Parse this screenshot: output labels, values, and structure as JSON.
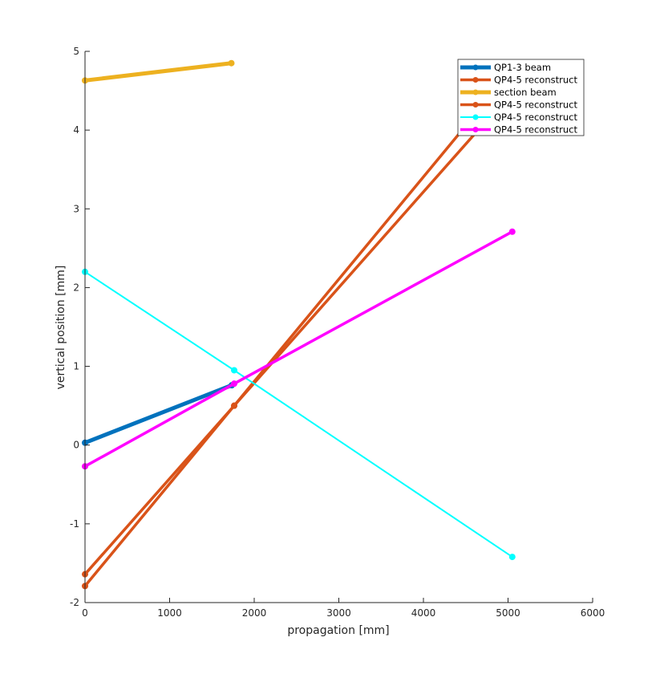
{
  "chart_data": {
    "type": "line",
    "title": "",
    "xlabel": "propagation [mm]",
    "ylabel": "vertical position [mm]",
    "xlim": [
      0,
      6000
    ],
    "ylim": [
      -2,
      5
    ],
    "xticks": [
      0,
      1000,
      2000,
      3000,
      4000,
      5000,
      6000
    ],
    "yticks": [
      -2,
      -1,
      0,
      1,
      2,
      3,
      4,
      5
    ],
    "grid": false,
    "legend_position": "top-right",
    "series": [
      {
        "name": "QP1-3 beam",
        "color": "#0072BD",
        "width": 5,
        "x": [
          0,
          1735
        ],
        "y": [
          0.03,
          0.76
        ]
      },
      {
        "name": "QP4-5 reconstruct",
        "color": "#D95319",
        "width": 3.5,
        "x": [
          0,
          1763,
          5050
        ],
        "y": [
          -1.64,
          0.5,
          4.49
        ]
      },
      {
        "name": "section beam",
        "color": "#EDB120",
        "width": 5,
        "x": [
          0,
          1730
        ],
        "y": [
          4.63,
          4.85
        ]
      },
      {
        "name": "QP4-5 reconstruct",
        "color": "#D95319",
        "width": 3.5,
        "x": [
          0,
          1763,
          5050
        ],
        "y": [
          -1.79,
          0.5,
          4.77
        ]
      },
      {
        "name": "QP4-5 reconstruct",
        "color": "#00FFFF",
        "width": 2,
        "x": [
          0,
          1763,
          5050
        ],
        "y": [
          2.2,
          0.95,
          -1.42
        ]
      },
      {
        "name": "QP4-5 reconstruct",
        "color": "#FF00FF",
        "width": 3.5,
        "x": [
          0,
          1763,
          5050
        ],
        "y": [
          -0.27,
          0.78,
          2.71
        ]
      }
    ]
  }
}
